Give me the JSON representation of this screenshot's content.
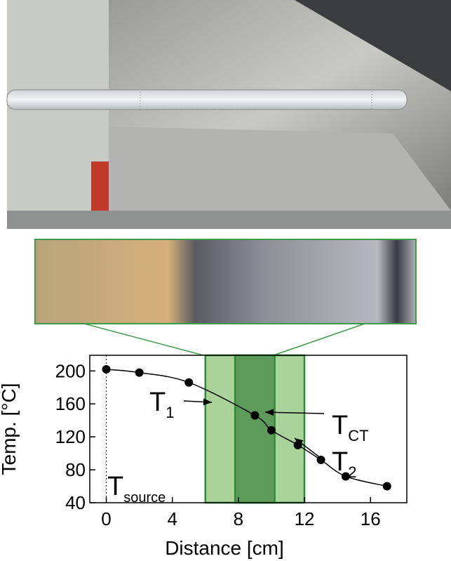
{
  "chart_data": {
    "type": "scatter",
    "x_label": "Distance [cm]",
    "y_label": "Temp. [°C]",
    "xlim": [
      -1,
      18.2
    ],
    "ylim": [
      40,
      219
    ],
    "xticks": [
      0,
      4,
      8,
      12,
      16
    ],
    "yticks": [
      40,
      80,
      120,
      160,
      200
    ],
    "bands": [
      {
        "from": 6,
        "to": 12,
        "color": "#a9d39a"
      },
      {
        "from": 7.8,
        "to": 10.2,
        "color": "#5e9a5a"
      }
    ],
    "band_border": "#2e8b3a",
    "series": [
      {
        "color": "#000000",
        "x": [
          0,
          2,
          5,
          9,
          10,
          11.6,
          13,
          14.5,
          17
        ],
        "values": [
          202,
          198,
          186,
          146,
          128,
          110,
          92,
          72,
          60
        ]
      }
    ],
    "annotations": [
      {
        "text": "T",
        "sub": "source"
      },
      {
        "text": "T",
        "sub": "1"
      },
      {
        "text": "T",
        "sub": "CT"
      },
      {
        "text": "T",
        "sub": "2"
      }
    ]
  }
}
